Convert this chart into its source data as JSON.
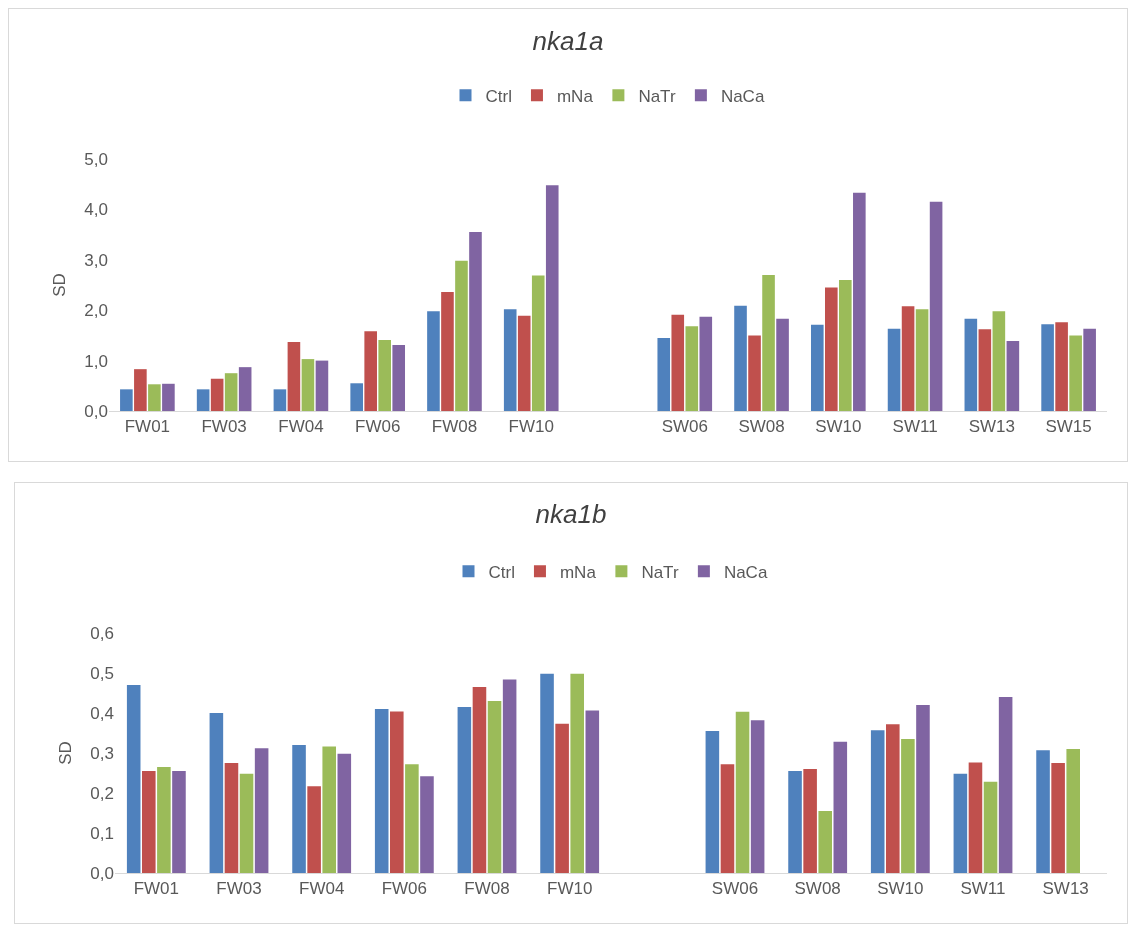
{
  "chart_data": [
    {
      "type": "bar",
      "title": "nka1a",
      "ylabel": "SD",
      "legend": "top",
      "grid": false,
      "categories": [
        "FW01",
        "FW03",
        "FW04",
        "FW06",
        "FW08",
        "FW10",
        null,
        "SW06",
        "SW08",
        "SW10",
        "SW11",
        "SW13",
        "SW15"
      ],
      "ylim": [
        0,
        5
      ],
      "yticks": [
        {
          "value": 0,
          "label": "0,0"
        },
        {
          "value": 1,
          "label": "1,0"
        },
        {
          "value": 2,
          "label": "2,0"
        },
        {
          "value": 3,
          "label": "3,0"
        },
        {
          "value": 4,
          "label": "4,0"
        },
        {
          "value": 5,
          "label": "5,0"
        }
      ],
      "series": [
        {
          "name": "Ctrl",
          "color": "#4f81bd",
          "values": [
            0.43,
            0.43,
            0.43,
            0.55,
            1.98,
            2.02,
            null,
            1.45,
            2.09,
            1.71,
            1.63,
            1.83,
            1.72
          ]
        },
        {
          "name": "mNa",
          "color": "#c0504d",
          "values": [
            0.83,
            0.64,
            1.37,
            1.58,
            2.36,
            1.89,
            null,
            1.91,
            1.5,
            2.45,
            2.08,
            1.62,
            1.76
          ]
        },
        {
          "name": "NaTr",
          "color": "#9bbb59",
          "values": [
            0.53,
            0.75,
            1.03,
            1.41,
            2.98,
            2.69,
            null,
            1.68,
            2.7,
            2.6,
            2.02,
            1.98,
            1.5
          ]
        },
        {
          "name": "NaCa",
          "color": "#8064a2",
          "values": [
            0.54,
            0.87,
            1.0,
            1.31,
            3.55,
            4.48,
            null,
            1.87,
            1.83,
            4.33,
            4.15,
            1.39,
            1.63
          ]
        }
      ]
    },
    {
      "type": "bar",
      "title": "nka1b",
      "ylabel": "SD",
      "legend": "top",
      "grid": false,
      "categories": [
        "FW01",
        "FW03",
        "FW04",
        "FW06",
        "FW08",
        "FW10",
        null,
        "SW06",
        "SW08",
        "SW10",
        "SW11",
        "SW13"
      ],
      "ylim": [
        0,
        0.6
      ],
      "yticks": [
        {
          "value": 0,
          "label": "0,0"
        },
        {
          "value": 0.1,
          "label": "0,1"
        },
        {
          "value": 0.2,
          "label": "0,2"
        },
        {
          "value": 0.3,
          "label": "0,3"
        },
        {
          "value": 0.4,
          "label": "0,4"
        },
        {
          "value": 0.5,
          "label": "0,5"
        },
        {
          "value": 0.6,
          "label": "0,6"
        }
      ],
      "series": [
        {
          "name": "Ctrl",
          "color": "#4f81bd",
          "values": [
            0.47,
            0.4,
            0.32,
            0.41,
            0.415,
            0.498,
            null,
            0.355,
            0.255,
            0.357,
            0.248,
            0.307
          ]
        },
        {
          "name": "mNa",
          "color": "#c0504d",
          "values": [
            0.255,
            0.275,
            0.217,
            0.404,
            0.465,
            0.373,
            null,
            0.272,
            0.26,
            0.372,
            0.276,
            0.275
          ]
        },
        {
          "name": "NaTr",
          "color": "#9bbb59",
          "values": [
            0.265,
            0.248,
            0.316,
            0.272,
            0.43,
            0.498,
            null,
            0.403,
            0.155,
            0.335,
            0.228,
            0.31
          ]
        },
        {
          "name": "NaCa",
          "color": "#8064a2",
          "values": [
            0.255,
            0.312,
            0.298,
            0.242,
            0.484,
            0.406,
            null,
            0.382,
            0.328,
            0.42,
            0.44,
            null
          ]
        }
      ]
    }
  ]
}
